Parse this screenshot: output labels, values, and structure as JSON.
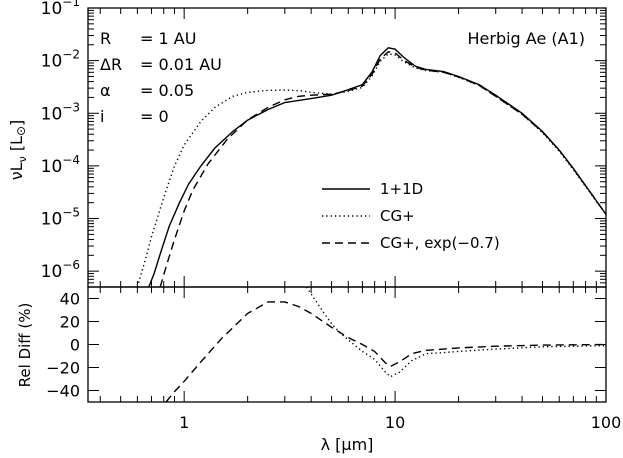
{
  "chart_data": [
    {
      "type": "line",
      "title": "",
      "annotation": "Herbig Ae (A1)",
      "params": [
        {
          "name": "R",
          "value": "=  1 AU"
        },
        {
          "name": "ΔR",
          "value": "=  0.01 AU"
        },
        {
          "name": "α",
          "value": "=  0.05"
        },
        {
          "name": "i",
          "value": "=  0"
        }
      ],
      "ylabel": "νL",
      "ylabel_sub": "ν",
      "ylabel_unit": " [L",
      "ylabel_unit_sym": "⊙",
      "ylabel_unit_end": "]",
      "xlabel": "",
      "xscale": "log",
      "yscale": "log",
      "xlim": [
        0.35,
        100
      ],
      "ylim": [
        5e-07,
        0.1
      ],
      "y_ticks": [
        {
          "label": "10",
          "exp": "−6",
          "value": 1e-06
        },
        {
          "label": "10",
          "exp": "−5",
          "value": 1e-05
        },
        {
          "label": "10",
          "exp": "−4",
          "value": 0.0001
        },
        {
          "label": "10",
          "exp": "−3",
          "value": 0.001
        },
        {
          "label": "10",
          "exp": "−2",
          "value": 0.01
        },
        {
          "label": "10",
          "exp": "−1",
          "value": 0.1
        }
      ],
      "legend_position": "right",
      "series": [
        {
          "name": "1+1D",
          "style": "solid",
          "x": [
            0.68,
            0.72,
            0.78,
            0.85,
            0.95,
            1.05,
            1.2,
            1.4,
            1.7,
            2.0,
            2.5,
            3.0,
            4.0,
            5.0,
            6.0,
            7.0,
            7.8,
            8.5,
            9.3,
            10.0,
            11.0,
            12.5,
            14,
            17,
            20,
            25,
            30,
            40,
            50,
            60,
            70,
            85,
            100
          ],
          "y": [
            5e-07,
            9e-07,
            2.5e-06,
            7.2e-06,
            2e-05,
            4.5e-05,
            0.0001,
            0.00022,
            0.00045,
            0.00074,
            0.00118,
            0.0016,
            0.0019,
            0.0022,
            0.0028,
            0.0035,
            0.0062,
            0.0125,
            0.0175,
            0.0165,
            0.0115,
            0.0078,
            0.0068,
            0.0062,
            0.005,
            0.0035,
            0.0022,
            0.001,
            0.00045,
            0.0002,
            9e-05,
            3e-05,
            1.2e-05
          ]
        },
        {
          "name": "CG+",
          "style": "dotted",
          "x": [
            0.6,
            0.65,
            0.7,
            0.8,
            0.9,
            1.0,
            1.2,
            1.4,
            1.7,
            2.0,
            2.5,
            3.0,
            3.5,
            4.0,
            5.0,
            6.0,
            7.0,
            7.8,
            8.5,
            9.3,
            10.0,
            11.0,
            12.5,
            14,
            17,
            20,
            25,
            30,
            40,
            50,
            60,
            70,
            85,
            100
          ],
          "y": [
            5e-07,
            1.5e-06,
            4.5e-06,
            2.5e-05,
            0.0001,
            0.00025,
            0.0007,
            0.0013,
            0.0021,
            0.0025,
            0.00272,
            0.00275,
            0.0027,
            0.0025,
            0.0023,
            0.0026,
            0.0031,
            0.0052,
            0.0098,
            0.0135,
            0.0128,
            0.0095,
            0.0072,
            0.0065,
            0.006,
            0.0048,
            0.0034,
            0.0021,
            0.00095,
            0.00043,
            0.00019,
            8.5e-05,
            2.9e-05,
            1.2e-05
          ]
        },
        {
          "name": "CG+, exp(−0.7)",
          "style": "dashed",
          "x": [
            0.77,
            0.82,
            0.9,
            1.0,
            1.1,
            1.3,
            1.6,
            2.0,
            2.5,
            3.0,
            3.5,
            4.0,
            5.0,
            6.0,
            7.0,
            7.8,
            8.5,
            9.3,
            10.0,
            11.0,
            12.5,
            14,
            17,
            20,
            25,
            30,
            40,
            50,
            60,
            70,
            85,
            100
          ],
          "y": [
            5e-07,
            1.2e-06,
            4e-06,
            1.4e-05,
            3.5e-05,
            0.00011,
            0.00032,
            0.00075,
            0.0013,
            0.0018,
            0.0021,
            0.0022,
            0.0023,
            0.0027,
            0.0033,
            0.0056,
            0.0108,
            0.0148,
            0.014,
            0.0102,
            0.0075,
            0.0066,
            0.006,
            0.0049,
            0.0034,
            0.0021,
            0.00096,
            0.00044,
            0.0002,
            8.8e-05,
            3e-05,
            1.2e-05
          ]
        }
      ]
    },
    {
      "type": "line",
      "title": "",
      "ylabel": "Rel Diff (%)",
      "xlabel": "λ [μm]",
      "xscale": "log",
      "xlim": [
        0.35,
        100
      ],
      "ylim": [
        -50,
        50
      ],
      "x_ticks": [
        {
          "label": "1",
          "value": 1
        },
        {
          "label": "10",
          "value": 10
        },
        {
          "label": "100",
          "value": 100
        }
      ],
      "y_ticks": [
        {
          "label": "−40",
          "value": -40
        },
        {
          "label": "−20",
          "value": -20
        },
        {
          "label": "0",
          "value": 0
        },
        {
          "label": "20",
          "value": 20
        },
        {
          "label": "40",
          "value": 40
        }
      ],
      "series": [
        {
          "name": "CG+",
          "style": "dotted",
          "x": [
            3.8,
            4.0,
            4.5,
            5.0,
            5.5,
            6.0,
            7.0,
            8.0,
            9.0,
            9.5,
            10.5,
            12,
            14,
            17,
            20,
            30,
            50,
            100
          ],
          "y": [
            50,
            44,
            30,
            18,
            10,
            4,
            -6,
            -13,
            -24,
            -28,
            -24,
            -14,
            -8,
            -7,
            -6,
            -4,
            -2,
            -1
          ]
        },
        {
          "name": "CG+, exp(−0.7)",
          "style": "dashed",
          "x": [
            0.82,
            0.9,
            1.0,
            1.2,
            1.5,
            2.0,
            2.5,
            3.0,
            3.5,
            4.0,
            5.0,
            6.0,
            7.0,
            8.0,
            9.0,
            9.5,
            10.5,
            12,
            14,
            17,
            20,
            30,
            50,
            100
          ],
          "y": [
            -50,
            -41,
            -32,
            -15,
            5,
            27,
            37,
            37,
            33,
            27,
            15,
            6,
            0,
            -6,
            -16,
            -19,
            -15,
            -8,
            -5,
            -4,
            -3,
            -1.5,
            -0.5,
            0
          ]
        }
      ]
    }
  ]
}
